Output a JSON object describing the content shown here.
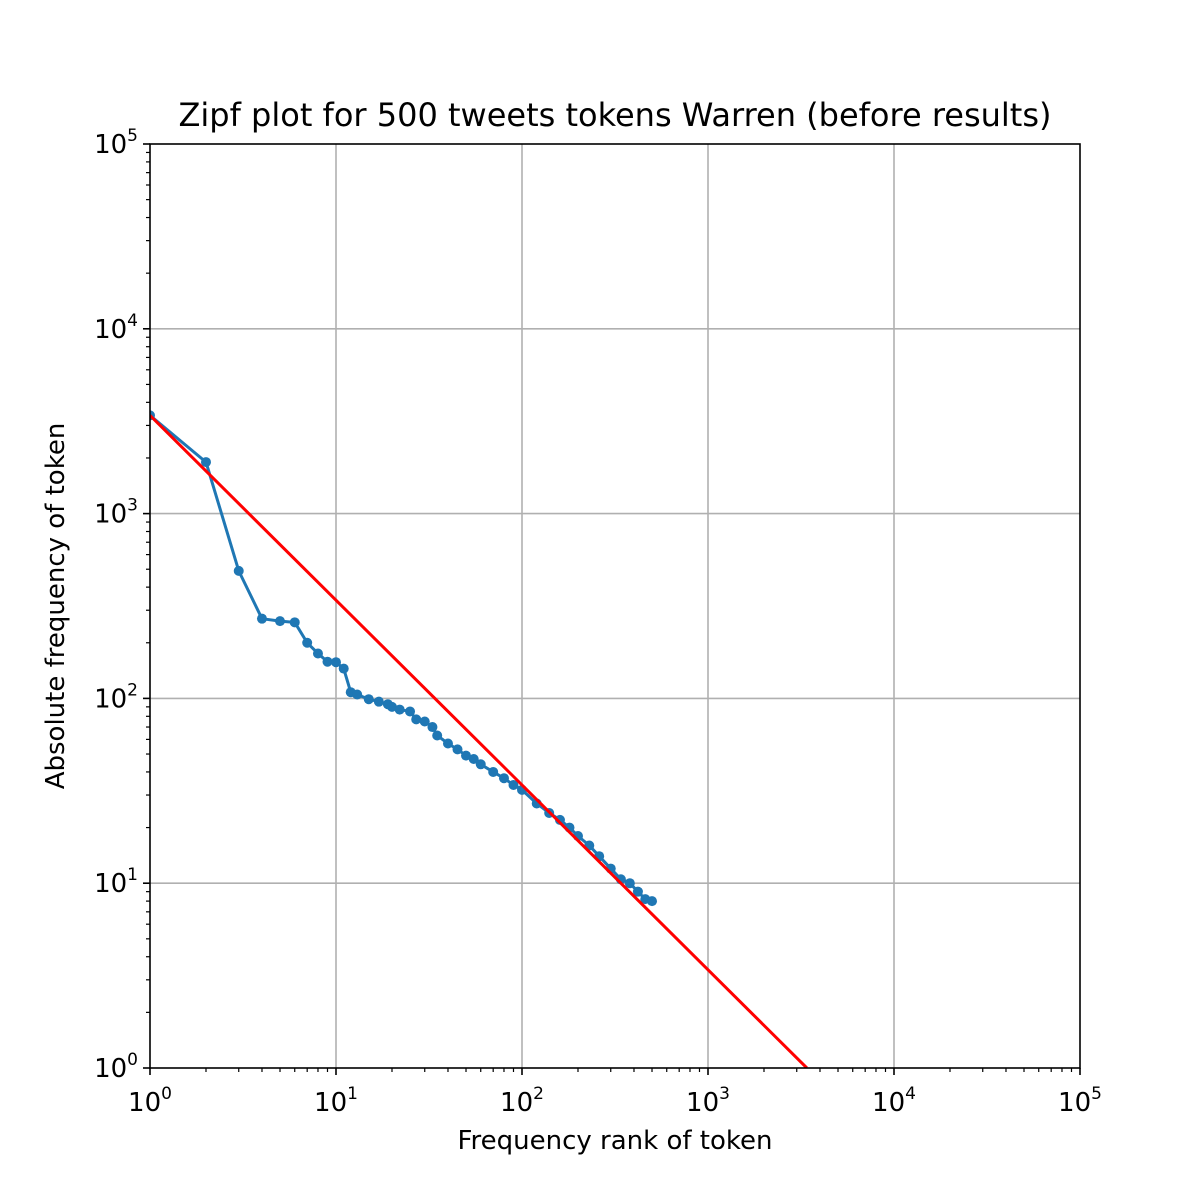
{
  "chart_data": {
    "type": "line",
    "title": "Zipf plot for 500 tweets tokens Warren (before results)",
    "xlabel": "Frequency rank of token",
    "ylabel": "Absolute frequency of token",
    "xscale": "log",
    "yscale": "log",
    "xlim": [
      1,
      100000
    ],
    "ylim": [
      1,
      100000
    ],
    "grid": true,
    "x_ticks": [
      {
        "base": "10",
        "exp": "0",
        "value": 1
      },
      {
        "base": "10",
        "exp": "1",
        "value": 10
      },
      {
        "base": "10",
        "exp": "2",
        "value": 100
      },
      {
        "base": "10",
        "exp": "3",
        "value": 1000
      },
      {
        "base": "10",
        "exp": "4",
        "value": 10000
      },
      {
        "base": "10",
        "exp": "5",
        "value": 100000
      }
    ],
    "y_ticks": [
      {
        "base": "10",
        "exp": "0",
        "value": 1
      },
      {
        "base": "10",
        "exp": "1",
        "value": 10
      },
      {
        "base": "10",
        "exp": "2",
        "value": 100
      },
      {
        "base": "10",
        "exp": "3",
        "value": 1000
      },
      {
        "base": "10",
        "exp": "4",
        "value": 10000
      },
      {
        "base": "10",
        "exp": "5",
        "value": 100000
      }
    ],
    "series": [
      {
        "color": "#1f77b4",
        "marker": "dot",
        "x": [
          1,
          2,
          3,
          4,
          5,
          6,
          7,
          8,
          9,
          10,
          11,
          12,
          13,
          15,
          17,
          19,
          20,
          22,
          25,
          27,
          30,
          33,
          35,
          40,
          45,
          50,
          55,
          60,
          70,
          80,
          90,
          100,
          120,
          140,
          160,
          180,
          200,
          230,
          260,
          300,
          340,
          380,
          420,
          460,
          500
        ],
        "y": [
          3400,
          1900,
          490,
          270,
          262,
          258,
          200,
          175,
          158,
          157,
          145,
          108,
          105,
          99,
          96,
          93,
          90,
          87,
          85,
          77,
          75,
          70,
          63,
          57,
          53,
          49,
          47,
          44,
          40,
          37,
          34,
          32,
          27,
          24,
          22,
          20,
          18,
          16,
          14,
          12,
          10.5,
          10,
          9,
          8.2,
          8
        ]
      },
      {
        "color": "#ff0000",
        "marker": "none",
        "x": [
          1,
          3400
        ],
        "y": [
          3400,
          1
        ]
      }
    ]
  }
}
